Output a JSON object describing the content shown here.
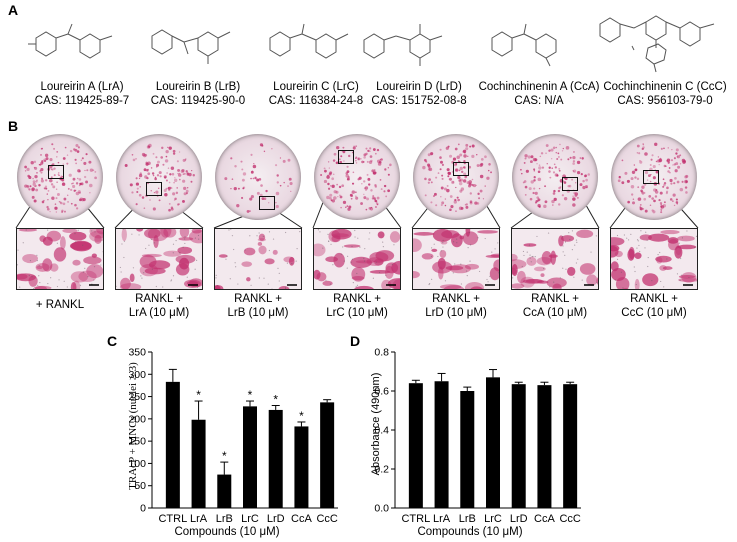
{
  "panels": {
    "a": "A",
    "b": "B",
    "c": "C",
    "d": "D"
  },
  "compounds": [
    {
      "name": "Loureirin A (LrA)",
      "cas": "CAS: 119425-89-7"
    },
    {
      "name": "Loureirin B (LrB)",
      "cas": "CAS: 119425-90-0"
    },
    {
      "name": "Loureirin C (LrC)",
      "cas": "CAS: 116384-24-8"
    },
    {
      "name": "Loureirin D (LrD)",
      "cas": "CAS: 151752-08-8"
    },
    {
      "name": "Cochinchinenin A (CcA)",
      "cas": "CAS: N/A"
    },
    {
      "name": "Cochinchinenin C (CcC)",
      "cas": "CAS: 956103-79-0"
    }
  ],
  "treatments": [
    {
      "line1": "+ RANKL",
      "line2": ""
    },
    {
      "line1": "RANKL +",
      "line2": "LrA (10 μM)"
    },
    {
      "line1": "RANKL +",
      "line2": "LrB (10 μM)"
    },
    {
      "line1": "RANKL +",
      "line2": "LrC (10 μM)"
    },
    {
      "line1": "RANKL +",
      "line2": "LrD (10 μM)"
    },
    {
      "line1": "RANKL +",
      "line2": "CcA (10 μM)"
    },
    {
      "line1": "RANKL +",
      "line2": "CcC (10 μM)"
    }
  ],
  "colors": {
    "stain": "#c2306e",
    "bar": "#000000"
  },
  "chart_data": [
    {
      "type": "bar",
      "xlabel": "Compounds (10 μM)",
      "ylabel": "TRAcP + MNCs (nuclei ≥ 3)",
      "categories": [
        "CTRL",
        "LrA",
        "LrB",
        "LrC",
        "LrD",
        "CcA",
        "CcC"
      ],
      "values": [
        283,
        198,
        75,
        228,
        220,
        183,
        237
      ],
      "errors": [
        28,
        42,
        28,
        12,
        10,
        10,
        6
      ],
      "significance": [
        "",
        "*",
        "*",
        "*",
        "*",
        "*",
        ""
      ],
      "ylim": [
        0,
        350
      ],
      "yticks": [
        0,
        50,
        100,
        150,
        200,
        250,
        300,
        350
      ]
    },
    {
      "type": "bar",
      "xlabel": "Compounds (10 μM)",
      "ylabel": "Absorbance (490nm)",
      "categories": [
        "CTRL",
        "LrA",
        "LrB",
        "LrC",
        "LrD",
        "CcA",
        "CcC"
      ],
      "values": [
        0.64,
        0.65,
        0.6,
        0.67,
        0.635,
        0.63,
        0.635
      ],
      "errors": [
        0.015,
        0.04,
        0.02,
        0.04,
        0.01,
        0.015,
        0.01
      ],
      "significance": [
        "",
        "",
        "",
        "",
        "",
        "",
        ""
      ],
      "ylim": [
        0,
        0.8
      ],
      "yticks": [
        "0.0",
        "0.2",
        "0.4",
        "0.6",
        "0.8"
      ]
    }
  ]
}
